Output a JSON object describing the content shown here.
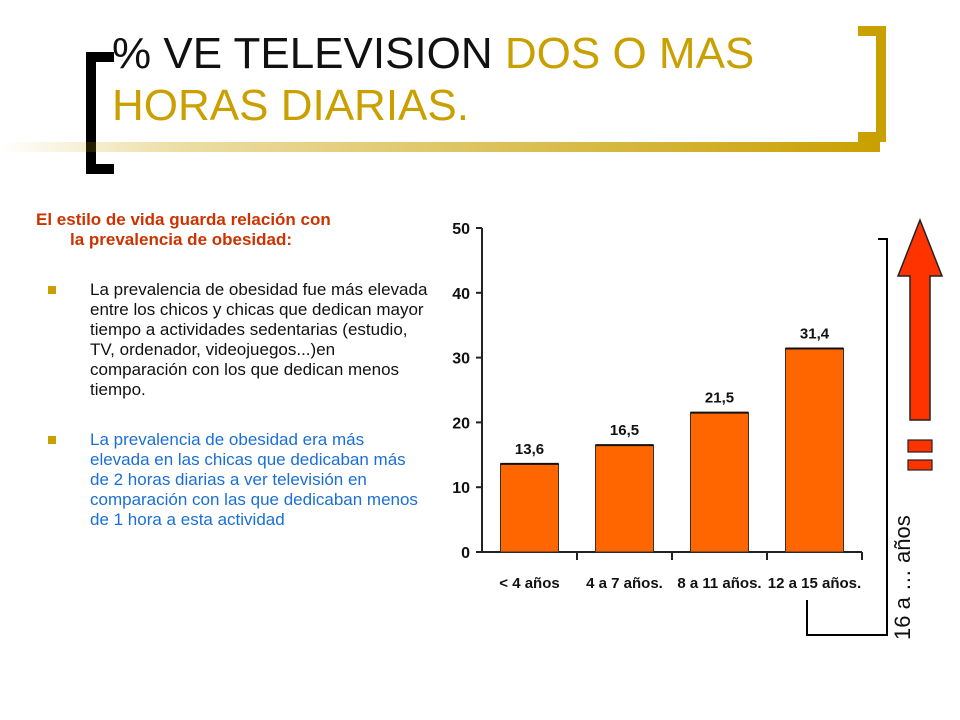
{
  "title": {
    "part1": "% VE TELEVISION ",
    "part2": "DOS O MAS HORAS DIARIAS."
  },
  "colors": {
    "accent_gold": "#c9a000",
    "intro_red": "#cc3300",
    "highlight_blue": "#1a6fd6",
    "bar_fill": "#ff6600",
    "arrow_red": "#ff3300"
  },
  "text": {
    "intro_line1": "El estilo de vida guarda relación con",
    "intro_line2": "la prevalencia de obesidad:",
    "bullet1": "La prevalencia de obesidad fue más elevada entre los chicos y chicas que dedican mayor tiempo a actividades sedentarias (estudio, TV, ordenador, videojuegos...)en comparación con los que dedican menos tiempo.",
    "bullet2": "La prevalencia de obesidad era más elevada en las chicas que dedicaban más de 2 horas diarias a ver televisión en comparación con las que dedicaban menos de 1 hora a esta actividad"
  },
  "side": {
    "label": "16 a … años",
    "arrow_icon": "up-arrow-icon"
  },
  "chart_data": {
    "type": "bar",
    "categories": [
      "< 4 años",
      "4 a 7 años.",
      "8 a 11 años.",
      "12 a 15 años."
    ],
    "values": [
      13.6,
      16.5,
      21.5,
      31.4
    ],
    "value_labels": [
      "13,6",
      "16,5",
      "21,5",
      "31,4"
    ],
    "yticks": [
      0,
      10,
      20,
      30,
      40,
      50
    ],
    "ylim": [
      0,
      50
    ],
    "title": "",
    "xlabel": "",
    "ylabel": "",
    "grid": false,
    "legend": false
  }
}
